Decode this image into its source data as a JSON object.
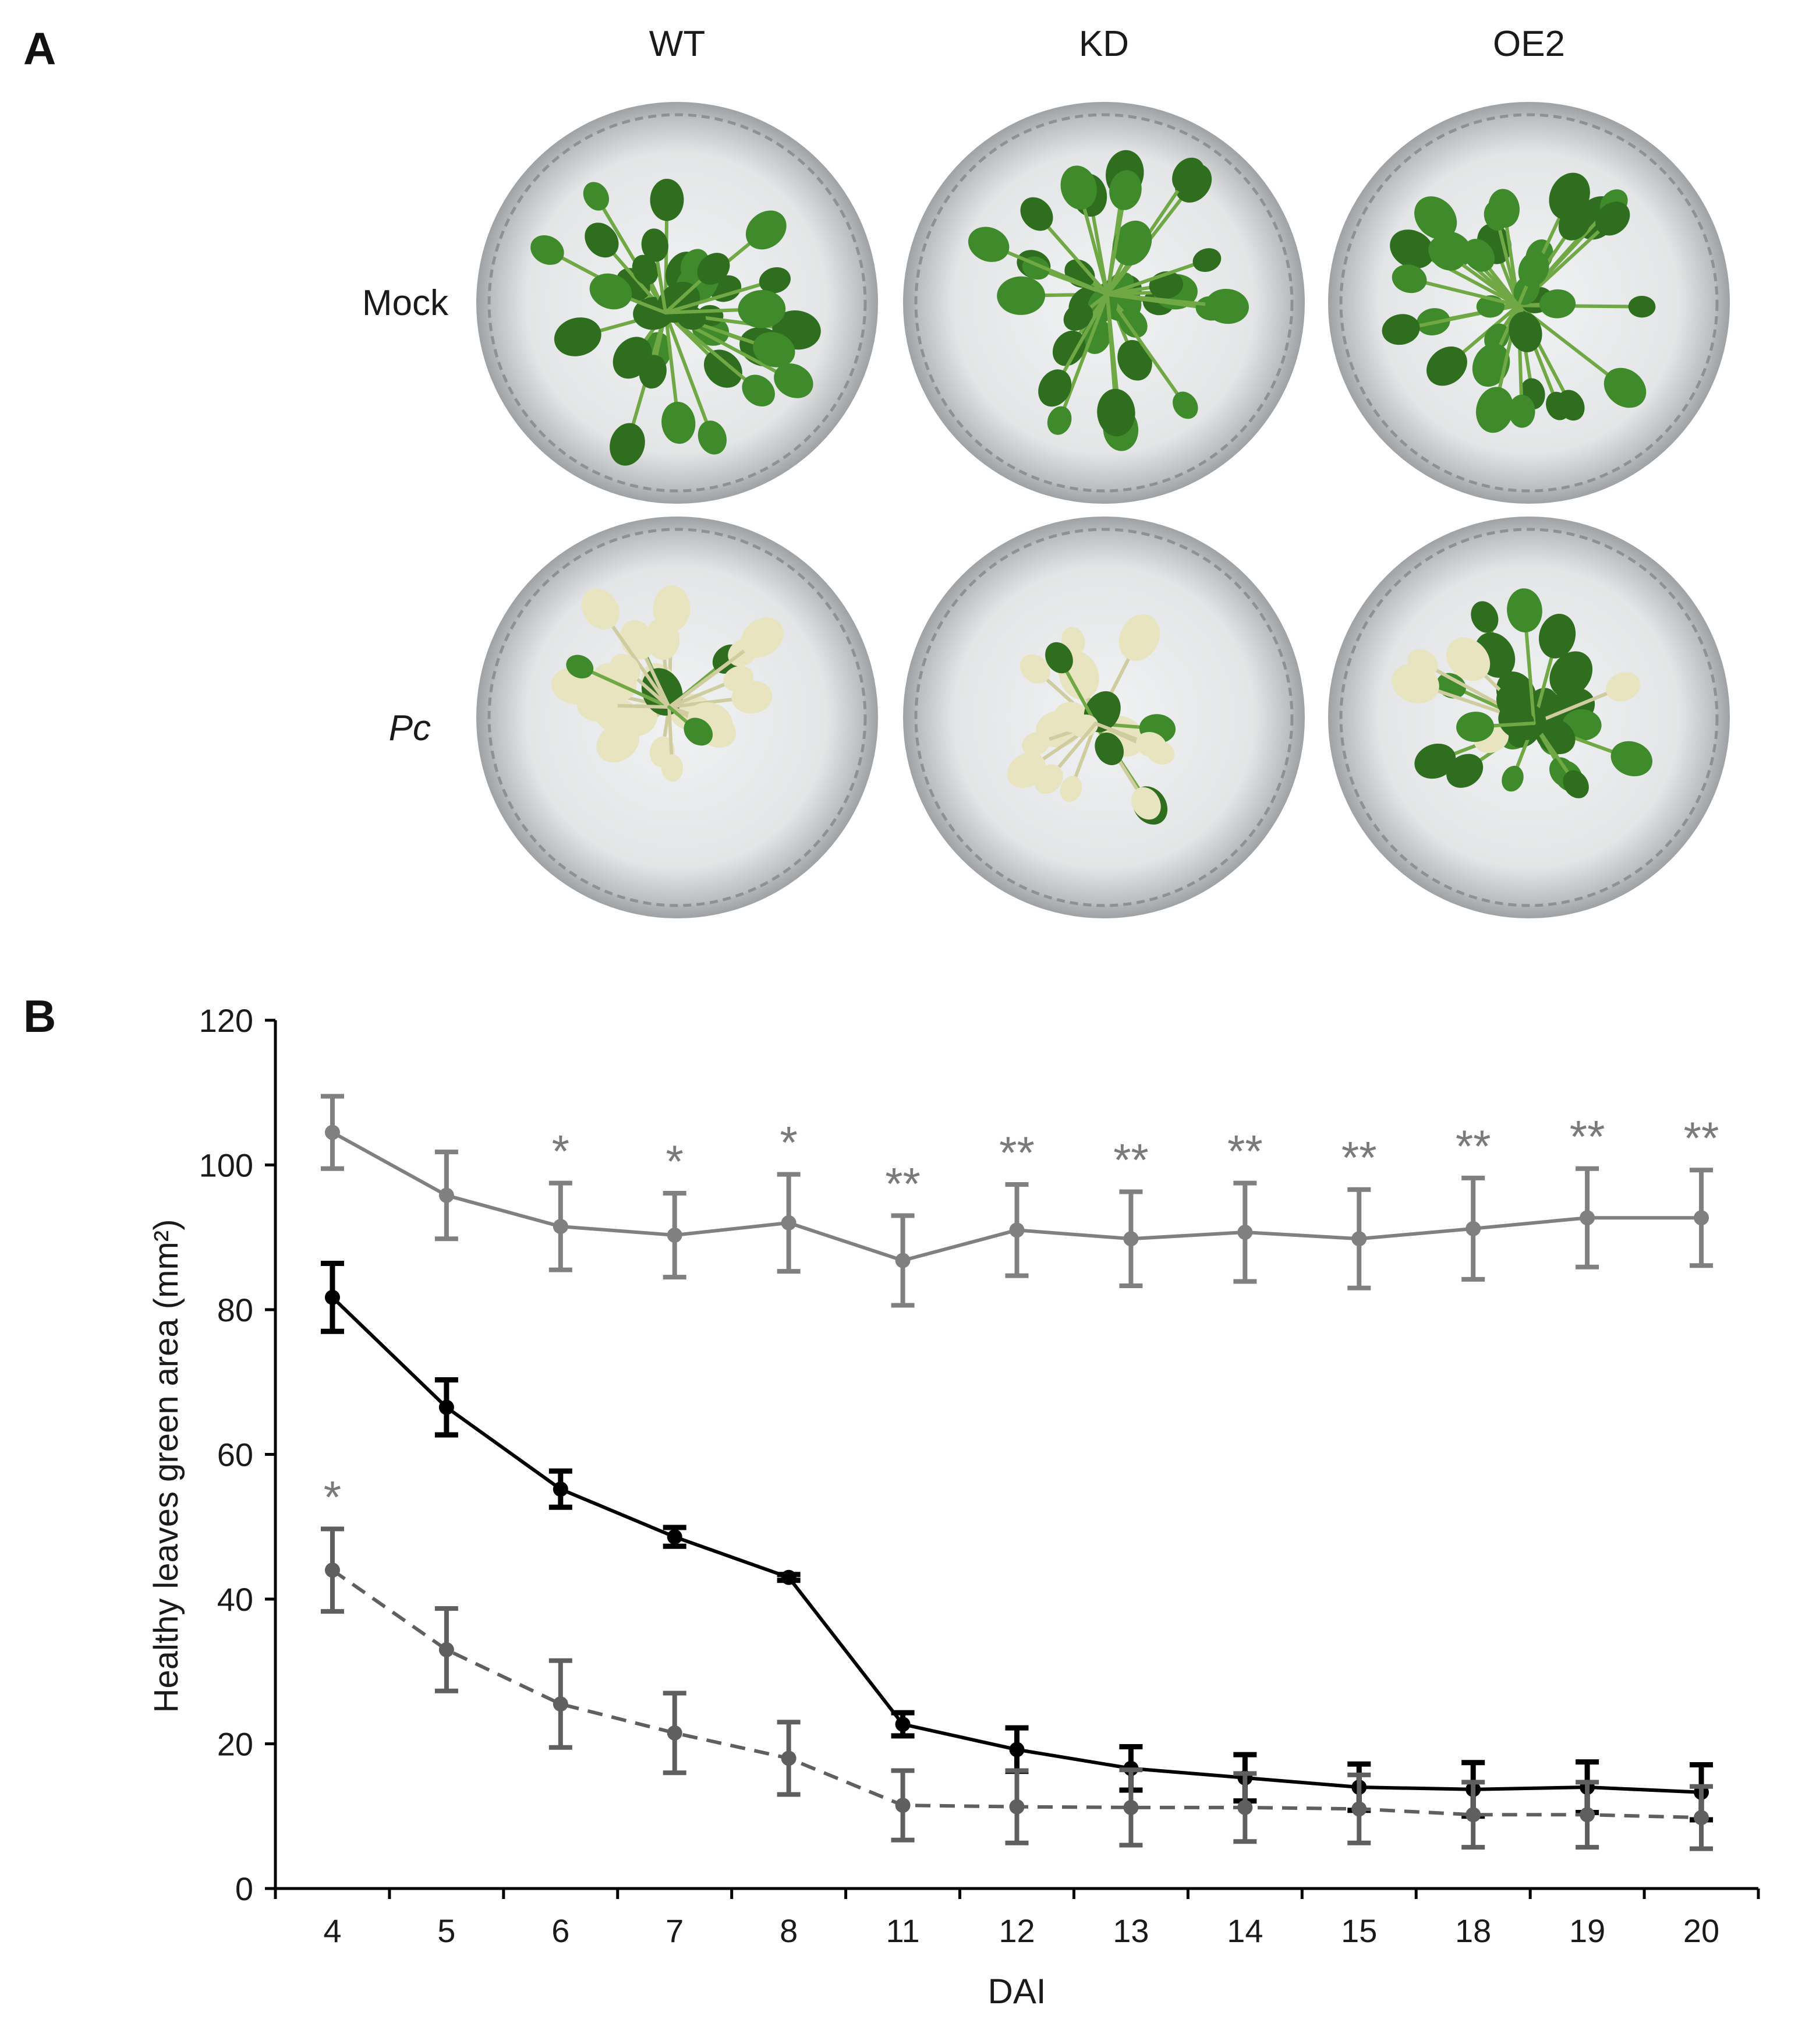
{
  "panel_a": {
    "label": "A",
    "columns": [
      "WT",
      "KD",
      "OE2"
    ],
    "rows": [
      "Mock",
      "Pc"
    ],
    "dish_states": [
      [
        "healthy",
        "healthy",
        "healthy"
      ],
      [
        "diseased-partial",
        "diseased-severe",
        "mostly-healthy"
      ]
    ],
    "colors": {
      "leaf_green": "#3f8a2a",
      "leaf_pale": "#e8e4bf",
      "dish_bg": "#d9dadb",
      "foam": "#eef0f1"
    }
  },
  "panel_b": {
    "label": "B"
  },
  "chart_data": {
    "type": "line",
    "xlabel": "DAI",
    "ylabel": "Healthy leaves green area (mm²)",
    "categories": [
      "4",
      "5",
      "6",
      "7",
      "8",
      "11",
      "12",
      "13",
      "14",
      "15",
      "18",
      "19",
      "20"
    ],
    "ylim": [
      0,
      120
    ],
    "yticks": [
      0,
      20,
      40,
      60,
      80,
      100,
      120
    ],
    "grid": false,
    "legend": "none",
    "series": [
      {
        "color": "#808080",
        "dash": "solid",
        "values": [
          104.5,
          95.8,
          91.5,
          90.3,
          92.0,
          86.8,
          91.0,
          89.8,
          90.7,
          89.8,
          91.2,
          92.7,
          92.7
        ],
        "errors": [
          5.0,
          6.0,
          6.0,
          5.8,
          6.7,
          6.2,
          6.3,
          6.5,
          6.8,
          6.8,
          7.0,
          6.8,
          6.6
        ],
        "stars": [
          "",
          "",
          "*",
          "*",
          "*",
          "**",
          "**",
          "**",
          "**",
          "**",
          "**",
          "**",
          "**"
        ]
      },
      {
        "color": "#000000",
        "dash": "solid",
        "values": [
          81.7,
          66.5,
          55.2,
          48.6,
          43.0,
          22.7,
          19.2,
          16.6,
          15.3,
          14.0,
          13.7,
          14.0,
          13.3
        ],
        "errors": [
          4.7,
          3.8,
          2.5,
          1.3,
          0.4,
          1.6,
          3.0,
          3.0,
          3.2,
          3.2,
          3.7,
          3.5,
          3.8
        ],
        "stars": [
          "",
          "",
          "",
          "",
          "",
          "",
          "",
          "",
          "",
          "",
          "",
          "",
          ""
        ]
      },
      {
        "color": "#5f5f5f",
        "dash": "dashed",
        "values": [
          44.0,
          33.0,
          25.5,
          21.5,
          18.0,
          11.5,
          11.3,
          11.2,
          11.2,
          11.0,
          10.2,
          10.2,
          9.8
        ],
        "errors": [
          5.7,
          5.7,
          6.0,
          5.5,
          5.0,
          4.8,
          5.0,
          5.2,
          4.7,
          4.7,
          4.5,
          4.5,
          4.3
        ],
        "stars": [
          "*",
          "",
          "",
          "",
          "",
          "",
          "",
          "",
          "",
          "",
          "",
          "",
          ""
        ]
      }
    ]
  }
}
